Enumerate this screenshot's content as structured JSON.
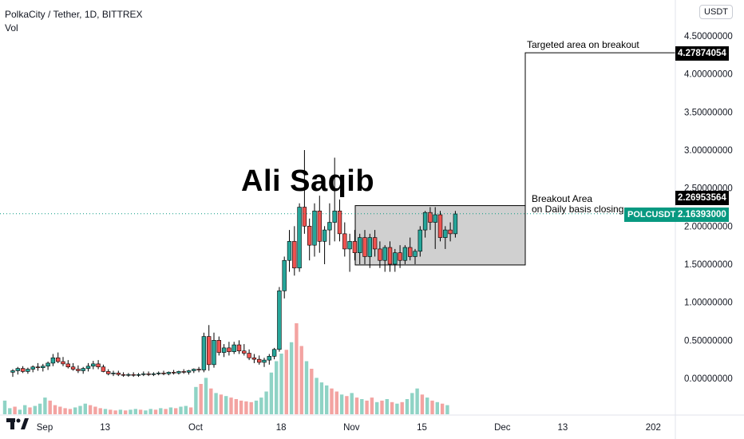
{
  "legend": {
    "title": "PolkaCity / Tether, 1D, BITTREX",
    "vol": "Vol"
  },
  "currency_button": "USDT",
  "watermark": "Ali Saqib",
  "annotations": {
    "target": "Targeted area on breakout",
    "breakout_line1": "Breakout Area",
    "breakout_line2": "on Daily basis closing."
  },
  "price_tags": {
    "target": "4.27874054",
    "breakout": "2.26953564",
    "symbol": "POLCUSDT",
    "last": "2.16393000"
  },
  "colors": {
    "up": "#26a69a",
    "down": "#ef5350",
    "vol_up": "#8fd3c5",
    "vol_down": "#f3a3a1",
    "box_fill": "#a9a9a9",
    "accent_green": "#089981"
  },
  "chart_data": {
    "type": "candlestick",
    "symbol": "PolkaCity / Tether",
    "interval": "1D",
    "exchange": "BITTREX",
    "ylim": [
      -0.2,
      4.6
    ],
    "yticks": [
      "4.50000000",
      "4.00000000",
      "3.50000000",
      "3.00000000",
      "2.50000000",
      "2.00000000",
      "1.50000000",
      "1.00000000",
      "0.50000000",
      "0.00000000"
    ],
    "ytick_values": [
      4.5,
      4.0,
      3.5,
      3.0,
      2.5,
      2.0,
      1.5,
      1.0,
      0.5,
      0.0
    ],
    "xticks": [
      {
        "label": "Sep",
        "day": 0
      },
      {
        "label": "13",
        "day": 12
      },
      {
        "label": "Oct",
        "day": 30
      },
      {
        "label": "18",
        "day": 47
      },
      {
        "label": "Nov",
        "day": 61
      },
      {
        "label": "15",
        "day": 75
      },
      {
        "label": "Dec",
        "day": 91
      },
      {
        "label": "13",
        "day": 103
      },
      {
        "label": "202",
        "day": 121
      }
    ],
    "ohlc": [
      [
        0.08,
        0.12,
        0.02,
        0.1
      ],
      [
        0.1,
        0.15,
        0.05,
        0.13
      ],
      [
        0.13,
        0.16,
        0.07,
        0.09
      ],
      [
        0.09,
        0.14,
        0.06,
        0.12
      ],
      [
        0.12,
        0.17,
        0.08,
        0.15
      ],
      [
        0.15,
        0.2,
        0.1,
        0.14
      ],
      [
        0.14,
        0.19,
        0.09,
        0.16
      ],
      [
        0.16,
        0.22,
        0.11,
        0.2
      ],
      [
        0.2,
        0.32,
        0.16,
        0.27
      ],
      [
        0.27,
        0.34,
        0.2,
        0.22
      ],
      [
        0.22,
        0.28,
        0.16,
        0.19
      ],
      [
        0.19,
        0.24,
        0.13,
        0.15
      ],
      [
        0.15,
        0.2,
        0.1,
        0.12
      ],
      [
        0.12,
        0.17,
        0.07,
        0.1
      ],
      [
        0.1,
        0.15,
        0.06,
        0.13
      ],
      [
        0.13,
        0.2,
        0.09,
        0.16
      ],
      [
        0.16,
        0.23,
        0.12,
        0.19
      ],
      [
        0.19,
        0.24,
        0.12,
        0.15
      ],
      [
        0.15,
        0.18,
        0.08,
        0.09
      ],
      [
        0.09,
        0.12,
        0.04,
        0.06
      ],
      [
        0.06,
        0.1,
        0.03,
        0.07
      ],
      [
        0.07,
        0.1,
        0.03,
        0.05
      ],
      [
        0.05,
        0.08,
        0.02,
        0.04
      ],
      [
        0.04,
        0.07,
        0.02,
        0.05
      ],
      [
        0.05,
        0.08,
        0.02,
        0.04
      ],
      [
        0.04,
        0.07,
        0.02,
        0.05
      ],
      [
        0.05,
        0.09,
        0.03,
        0.06
      ],
      [
        0.06,
        0.09,
        0.03,
        0.05
      ],
      [
        0.05,
        0.08,
        0.03,
        0.06
      ],
      [
        0.06,
        0.09,
        0.04,
        0.07
      ],
      [
        0.07,
        0.1,
        0.04,
        0.06
      ],
      [
        0.06,
        0.09,
        0.04,
        0.08
      ],
      [
        0.08,
        0.11,
        0.05,
        0.07
      ],
      [
        0.07,
        0.1,
        0.05,
        0.09
      ],
      [
        0.09,
        0.12,
        0.06,
        0.08
      ],
      [
        0.08,
        0.11,
        0.05,
        0.1
      ],
      [
        0.1,
        0.13,
        0.07,
        0.12
      ],
      [
        0.12,
        0.15,
        0.08,
        0.11
      ],
      [
        0.11,
        0.6,
        0.08,
        0.55
      ],
      [
        0.55,
        0.7,
        0.1,
        0.18
      ],
      [
        0.18,
        0.6,
        0.14,
        0.5
      ],
      [
        0.5,
        0.55,
        0.3,
        0.34
      ],
      [
        0.34,
        0.45,
        0.28,
        0.4
      ],
      [
        0.4,
        0.48,
        0.3,
        0.35
      ],
      [
        0.35,
        0.48,
        0.32,
        0.44
      ],
      [
        0.44,
        0.5,
        0.32,
        0.36
      ],
      [
        0.36,
        0.45,
        0.3,
        0.33
      ],
      [
        0.33,
        0.38,
        0.24,
        0.27
      ],
      [
        0.27,
        0.32,
        0.2,
        0.25
      ],
      [
        0.25,
        0.3,
        0.18,
        0.21
      ],
      [
        0.21,
        0.27,
        0.15,
        0.24
      ],
      [
        0.24,
        0.32,
        0.18,
        0.29
      ],
      [
        0.29,
        0.4,
        0.25,
        0.38
      ],
      [
        0.38,
        1.2,
        0.35,
        1.15
      ],
      [
        1.15,
        1.6,
        1.05,
        1.55
      ],
      [
        1.55,
        1.95,
        1.4,
        1.8
      ],
      [
        1.8,
        2.0,
        1.35,
        1.45
      ],
      [
        1.45,
        2.3,
        1.4,
        2.25
      ],
      [
        2.25,
        3.0,
        1.9,
        2.0
      ],
      [
        2.0,
        2.1,
        1.55,
        1.75
      ],
      [
        1.75,
        2.3,
        1.6,
        2.2
      ],
      [
        2.2,
        2.4,
        1.65,
        1.8
      ],
      [
        1.8,
        2.0,
        1.5,
        1.95
      ],
      [
        1.95,
        2.3,
        1.75,
        2.05
      ],
      [
        2.05,
        2.9,
        1.8,
        2.2
      ],
      [
        2.2,
        2.35,
        1.8,
        1.9
      ],
      [
        1.9,
        2.05,
        1.6,
        1.7
      ],
      [
        1.7,
        1.9,
        1.4,
        1.8
      ],
      [
        1.8,
        1.95,
        1.55,
        1.65
      ],
      [
        1.65,
        1.9,
        1.5,
        1.85
      ],
      [
        1.85,
        1.95,
        1.5,
        1.6
      ],
      [
        1.6,
        1.9,
        1.45,
        1.85
      ],
      [
        1.85,
        1.95,
        1.6,
        1.7
      ],
      [
        1.7,
        1.8,
        1.45,
        1.55
      ],
      [
        1.55,
        1.75,
        1.4,
        1.72
      ],
      [
        1.72,
        1.8,
        1.4,
        1.5
      ],
      [
        1.5,
        1.7,
        1.4,
        1.65
      ],
      [
        1.65,
        1.75,
        1.45,
        1.55
      ],
      [
        1.55,
        1.75,
        1.5,
        1.72
      ],
      [
        1.72,
        1.85,
        1.55,
        1.6
      ],
      [
        1.6,
        1.7,
        1.5,
        1.67
      ],
      [
        1.67,
        2.0,
        1.6,
        1.95
      ],
      [
        1.95,
        2.2,
        1.85,
        2.18
      ],
      [
        2.18,
        2.25,
        1.95,
        2.05
      ],
      [
        2.05,
        2.25,
        1.7,
        2.15
      ],
      [
        2.15,
        2.2,
        1.8,
        1.85
      ],
      [
        1.85,
        2.0,
        1.7,
        1.95
      ],
      [
        1.95,
        2.05,
        1.8,
        1.9
      ],
      [
        1.9,
        2.2,
        1.85,
        2.16
      ]
    ],
    "volume": [
      18,
      8,
      10,
      6,
      12,
      9,
      11,
      14,
      22,
      18,
      12,
      10,
      8,
      7,
      9,
      11,
      14,
      12,
      10,
      8,
      7,
      6,
      5,
      6,
      5,
      6,
      7,
      6,
      5,
      7,
      6,
      8,
      7,
      9,
      8,
      10,
      11,
      9,
      36,
      40,
      48,
      34,
      28,
      26,
      24,
      22,
      20,
      18,
      17,
      16,
      18,
      22,
      30,
      55,
      70,
      80,
      85,
      95,
      120,
      90,
      70,
      60,
      48,
      42,
      38,
      34,
      30,
      26,
      24,
      28,
      22,
      20,
      18,
      22,
      16,
      18,
      20,
      16,
      14,
      16,
      20,
      28,
      34,
      26,
      22,
      18,
      16,
      14,
      12
    ]
  },
  "breakout_box": {
    "x_start_day": 61,
    "x_end_day": 89,
    "y_low": 1.49,
    "y_high": 2.27
  },
  "target_line": {
    "from_day": 89,
    "value": 4.27874054
  },
  "last_price": 2.16393
}
